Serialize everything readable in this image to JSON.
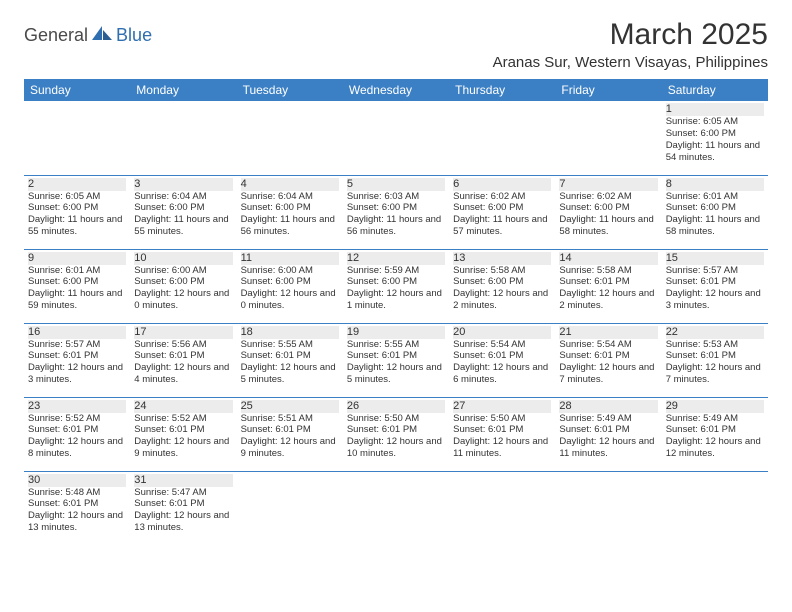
{
  "logo": {
    "part1": "General",
    "part2": "Blue"
  },
  "title": "March 2025",
  "location": "Aranas Sur, Western Visayas, Philippines",
  "colors": {
    "header_bg": "#3b7fc4",
    "header_fg": "#ffffff",
    "daynum_bg": "#ececec",
    "border": "#3b7fc4",
    "text": "#333333",
    "logo_gray": "#4a4a4a",
    "logo_blue": "#2f6fb0"
  },
  "weekdays": [
    "Sunday",
    "Monday",
    "Tuesday",
    "Wednesday",
    "Thursday",
    "Friday",
    "Saturday"
  ],
  "weeks": [
    [
      null,
      null,
      null,
      null,
      null,
      null,
      {
        "n": "1",
        "sr": "Sunrise: 6:05 AM",
        "ss": "Sunset: 6:00 PM",
        "dl": "Daylight: 11 hours and 54 minutes."
      }
    ],
    [
      {
        "n": "2",
        "sr": "Sunrise: 6:05 AM",
        "ss": "Sunset: 6:00 PM",
        "dl": "Daylight: 11 hours and 55 minutes."
      },
      {
        "n": "3",
        "sr": "Sunrise: 6:04 AM",
        "ss": "Sunset: 6:00 PM",
        "dl": "Daylight: 11 hours and 55 minutes."
      },
      {
        "n": "4",
        "sr": "Sunrise: 6:04 AM",
        "ss": "Sunset: 6:00 PM",
        "dl": "Daylight: 11 hours and 56 minutes."
      },
      {
        "n": "5",
        "sr": "Sunrise: 6:03 AM",
        "ss": "Sunset: 6:00 PM",
        "dl": "Daylight: 11 hours and 56 minutes."
      },
      {
        "n": "6",
        "sr": "Sunrise: 6:02 AM",
        "ss": "Sunset: 6:00 PM",
        "dl": "Daylight: 11 hours and 57 minutes."
      },
      {
        "n": "7",
        "sr": "Sunrise: 6:02 AM",
        "ss": "Sunset: 6:00 PM",
        "dl": "Daylight: 11 hours and 58 minutes."
      },
      {
        "n": "8",
        "sr": "Sunrise: 6:01 AM",
        "ss": "Sunset: 6:00 PM",
        "dl": "Daylight: 11 hours and 58 minutes."
      }
    ],
    [
      {
        "n": "9",
        "sr": "Sunrise: 6:01 AM",
        "ss": "Sunset: 6:00 PM",
        "dl": "Daylight: 11 hours and 59 minutes."
      },
      {
        "n": "10",
        "sr": "Sunrise: 6:00 AM",
        "ss": "Sunset: 6:00 PM",
        "dl": "Daylight: 12 hours and 0 minutes."
      },
      {
        "n": "11",
        "sr": "Sunrise: 6:00 AM",
        "ss": "Sunset: 6:00 PM",
        "dl": "Daylight: 12 hours and 0 minutes."
      },
      {
        "n": "12",
        "sr": "Sunrise: 5:59 AM",
        "ss": "Sunset: 6:00 PM",
        "dl": "Daylight: 12 hours and 1 minute."
      },
      {
        "n": "13",
        "sr": "Sunrise: 5:58 AM",
        "ss": "Sunset: 6:00 PM",
        "dl": "Daylight: 12 hours and 2 minutes."
      },
      {
        "n": "14",
        "sr": "Sunrise: 5:58 AM",
        "ss": "Sunset: 6:01 PM",
        "dl": "Daylight: 12 hours and 2 minutes."
      },
      {
        "n": "15",
        "sr": "Sunrise: 5:57 AM",
        "ss": "Sunset: 6:01 PM",
        "dl": "Daylight: 12 hours and 3 minutes."
      }
    ],
    [
      {
        "n": "16",
        "sr": "Sunrise: 5:57 AM",
        "ss": "Sunset: 6:01 PM",
        "dl": "Daylight: 12 hours and 3 minutes."
      },
      {
        "n": "17",
        "sr": "Sunrise: 5:56 AM",
        "ss": "Sunset: 6:01 PM",
        "dl": "Daylight: 12 hours and 4 minutes."
      },
      {
        "n": "18",
        "sr": "Sunrise: 5:55 AM",
        "ss": "Sunset: 6:01 PM",
        "dl": "Daylight: 12 hours and 5 minutes."
      },
      {
        "n": "19",
        "sr": "Sunrise: 5:55 AM",
        "ss": "Sunset: 6:01 PM",
        "dl": "Daylight: 12 hours and 5 minutes."
      },
      {
        "n": "20",
        "sr": "Sunrise: 5:54 AM",
        "ss": "Sunset: 6:01 PM",
        "dl": "Daylight: 12 hours and 6 minutes."
      },
      {
        "n": "21",
        "sr": "Sunrise: 5:54 AM",
        "ss": "Sunset: 6:01 PM",
        "dl": "Daylight: 12 hours and 7 minutes."
      },
      {
        "n": "22",
        "sr": "Sunrise: 5:53 AM",
        "ss": "Sunset: 6:01 PM",
        "dl": "Daylight: 12 hours and 7 minutes."
      }
    ],
    [
      {
        "n": "23",
        "sr": "Sunrise: 5:52 AM",
        "ss": "Sunset: 6:01 PM",
        "dl": "Daylight: 12 hours and 8 minutes."
      },
      {
        "n": "24",
        "sr": "Sunrise: 5:52 AM",
        "ss": "Sunset: 6:01 PM",
        "dl": "Daylight: 12 hours and 9 minutes."
      },
      {
        "n": "25",
        "sr": "Sunrise: 5:51 AM",
        "ss": "Sunset: 6:01 PM",
        "dl": "Daylight: 12 hours and 9 minutes."
      },
      {
        "n": "26",
        "sr": "Sunrise: 5:50 AM",
        "ss": "Sunset: 6:01 PM",
        "dl": "Daylight: 12 hours and 10 minutes."
      },
      {
        "n": "27",
        "sr": "Sunrise: 5:50 AM",
        "ss": "Sunset: 6:01 PM",
        "dl": "Daylight: 12 hours and 11 minutes."
      },
      {
        "n": "28",
        "sr": "Sunrise: 5:49 AM",
        "ss": "Sunset: 6:01 PM",
        "dl": "Daylight: 12 hours and 11 minutes."
      },
      {
        "n": "29",
        "sr": "Sunrise: 5:49 AM",
        "ss": "Sunset: 6:01 PM",
        "dl": "Daylight: 12 hours and 12 minutes."
      }
    ],
    [
      {
        "n": "30",
        "sr": "Sunrise: 5:48 AM",
        "ss": "Sunset: 6:01 PM",
        "dl": "Daylight: 12 hours and 13 minutes."
      },
      {
        "n": "31",
        "sr": "Sunrise: 5:47 AM",
        "ss": "Sunset: 6:01 PM",
        "dl": "Daylight: 12 hours and 13 minutes."
      },
      null,
      null,
      null,
      null,
      null
    ]
  ]
}
